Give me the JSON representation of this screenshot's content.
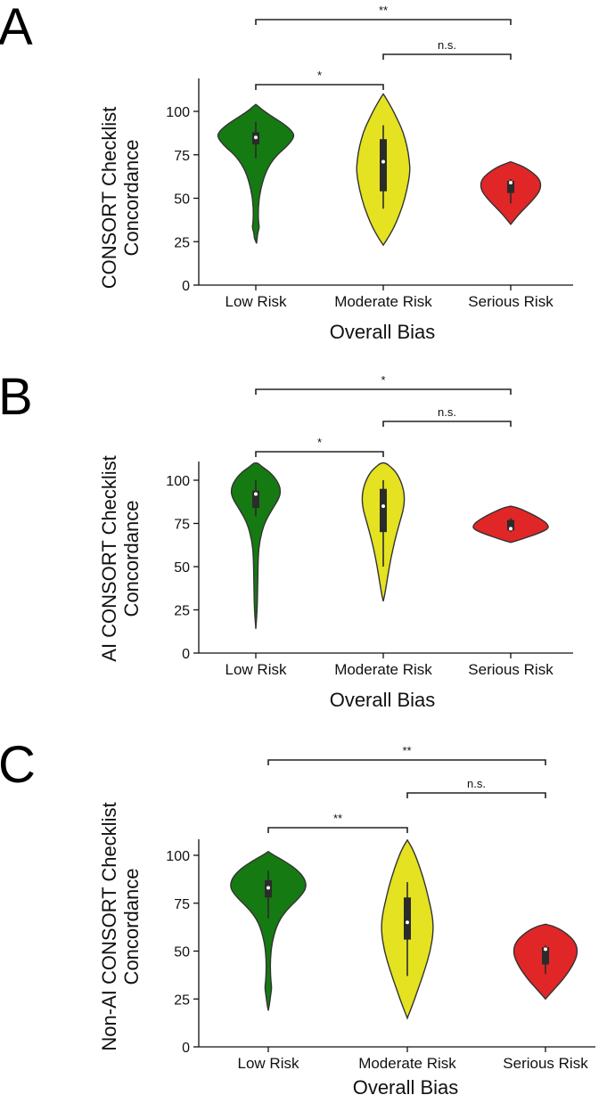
{
  "colors": {
    "Low Risk": "#157a12",
    "Moderate Risk": "#e4e221",
    "Serious Risk": "#e02626"
  },
  "chart_data": [
    {
      "panel": "A",
      "type": "violin",
      "xlabel": "Overall Bias",
      "ylabel": [
        "CONSORT Checklist",
        "Concordance"
      ],
      "categories": [
        "Low Risk",
        "Moderate Risk",
        "Serious Risk"
      ],
      "yticks": [
        0,
        25,
        50,
        75,
        100
      ],
      "ylim": [
        0,
        105
      ],
      "series": [
        {
          "category": "Low Risk",
          "q1": 81,
          "median": 85,
          "q3": 88,
          "whisker_low": 73,
          "whisker_high": 94,
          "profile": [
            [
              24,
              0.02
            ],
            [
              30,
              0.05
            ],
            [
              33,
              0.09
            ],
            [
              35,
              0.08
            ],
            [
              40,
              0.06
            ],
            [
              50,
              0.08
            ],
            [
              60,
              0.18
            ],
            [
              68,
              0.32
            ],
            [
              75,
              0.55
            ],
            [
              80,
              0.82
            ],
            [
              85,
              1.0
            ],
            [
              88,
              0.97
            ],
            [
              92,
              0.78
            ],
            [
              96,
              0.5
            ],
            [
              100,
              0.22
            ],
            [
              103,
              0.06
            ],
            [
              104,
              0.0
            ]
          ]
        },
        {
          "category": "Moderate Risk",
          "q1": 54,
          "median": 71,
          "q3": 84,
          "whisker_low": 44,
          "whisker_high": 92,
          "profile": [
            [
              23,
              0.0
            ],
            [
              28,
              0.15
            ],
            [
              35,
              0.32
            ],
            [
              45,
              0.5
            ],
            [
              55,
              0.62
            ],
            [
              65,
              0.7
            ],
            [
              72,
              0.68
            ],
            [
              80,
              0.62
            ],
            [
              88,
              0.52
            ],
            [
              95,
              0.38
            ],
            [
              102,
              0.22
            ],
            [
              108,
              0.06
            ],
            [
              110,
              0.0
            ]
          ]
        },
        {
          "category": "Serious Risk",
          "q1": 53,
          "median": 59,
          "q3": 60,
          "whisker_low": 47,
          "whisker_high": 61,
          "profile": [
            [
              35,
              0.0
            ],
            [
              40,
              0.18
            ],
            [
              45,
              0.4
            ],
            [
              50,
              0.62
            ],
            [
              55,
              0.78
            ],
            [
              60,
              0.78
            ],
            [
              64,
              0.62
            ],
            [
              68,
              0.35
            ],
            [
              70,
              0.12
            ],
            [
              71,
              0.0
            ]
          ]
        }
      ],
      "comparisons": [
        {
          "from": 0,
          "to": 2,
          "label": "**"
        },
        {
          "from": 1,
          "to": 2,
          "label": "n.s."
        },
        {
          "from": 0,
          "to": 1,
          "label": "*"
        }
      ]
    },
    {
      "panel": "B",
      "type": "violin",
      "xlabel": "Overall Bias",
      "ylabel": [
        "AI CONSORT Checklist",
        "Concordance"
      ],
      "categories": [
        "Low Risk",
        "Moderate Risk",
        "Serious Risk"
      ],
      "yticks": [
        0,
        25,
        50,
        75,
        100
      ],
      "ylim": [
        0,
        110
      ],
      "series": [
        {
          "category": "Low Risk",
          "q1": 84,
          "median": 92,
          "q3": 94,
          "whisker_low": 79,
          "whisker_high": 100,
          "profile": [
            [
              14,
              0.0
            ],
            [
              20,
              0.02
            ],
            [
              28,
              0.04
            ],
            [
              40,
              0.05
            ],
            [
              55,
              0.06
            ],
            [
              65,
              0.1
            ],
            [
              75,
              0.22
            ],
            [
              83,
              0.42
            ],
            [
              90,
              0.62
            ],
            [
              95,
              0.65
            ],
            [
              100,
              0.55
            ],
            [
              105,
              0.35
            ],
            [
              108,
              0.15
            ],
            [
              110,
              0.05
            ]
          ]
        },
        {
          "category": "Moderate Risk",
          "q1": 70,
          "median": 85,
          "q3": 95,
          "whisker_low": 50,
          "whisker_high": 100,
          "profile": [
            [
              30,
              0.0
            ],
            [
              35,
              0.05
            ],
            [
              45,
              0.12
            ],
            [
              55,
              0.2
            ],
            [
              65,
              0.3
            ],
            [
              75,
              0.42
            ],
            [
              85,
              0.55
            ],
            [
              93,
              0.55
            ],
            [
              100,
              0.45
            ],
            [
              105,
              0.32
            ],
            [
              108,
              0.18
            ],
            [
              110,
              0.06
            ]
          ]
        },
        {
          "category": "Serious Risk",
          "q1": 71,
          "median": 72,
          "q3": 77,
          "whisker_low": 70,
          "whisker_high": 78,
          "profile": [
            [
              64,
              0.0
            ],
            [
              66,
              0.3
            ],
            [
              69,
              0.7
            ],
            [
              72,
              1.0
            ],
            [
              75,
              0.95
            ],
            [
              78,
              0.75
            ],
            [
              81,
              0.5
            ],
            [
              84,
              0.2
            ],
            [
              85,
              0.0
            ]
          ]
        }
      ],
      "comparisons": [
        {
          "from": 0,
          "to": 2,
          "label": "*"
        },
        {
          "from": 1,
          "to": 2,
          "label": "n.s."
        },
        {
          "from": 0,
          "to": 1,
          "label": "*"
        }
      ]
    },
    {
      "panel": "C",
      "type": "violin",
      "xlabel": "Overall Bias",
      "ylabel": [
        "Non-AI CONSORT Checklist",
        "Concordance"
      ],
      "categories": [
        "Low Risk",
        "Moderate Risk",
        "Serious Risk"
      ],
      "yticks": [
        0,
        25,
        50,
        75,
        100
      ],
      "ylim": [
        0,
        110
      ],
      "series": [
        {
          "category": "Low Risk",
          "q1": 78,
          "median": 83,
          "q3": 87,
          "whisker_low": 67,
          "whisker_high": 92,
          "profile": [
            [
              19,
              0.0
            ],
            [
              22,
              0.03
            ],
            [
              28,
              0.07
            ],
            [
              31,
              0.09
            ],
            [
              36,
              0.06
            ],
            [
              45,
              0.05
            ],
            [
              55,
              0.1
            ],
            [
              65,
              0.25
            ],
            [
              72,
              0.5
            ],
            [
              78,
              0.82
            ],
            [
              83,
              1.0
            ],
            [
              88,
              0.95
            ],
            [
              93,
              0.72
            ],
            [
              97,
              0.42
            ],
            [
              100,
              0.15
            ],
            [
              102,
              0.0
            ]
          ]
        },
        {
          "category": "Moderate Risk",
          "q1": 56,
          "median": 65,
          "q3": 78,
          "whisker_low": 37,
          "whisker_high": 86,
          "profile": [
            [
              15,
              0.0
            ],
            [
              20,
              0.1
            ],
            [
              30,
              0.28
            ],
            [
              40,
              0.45
            ],
            [
              50,
              0.6
            ],
            [
              60,
              0.68
            ],
            [
              68,
              0.66
            ],
            [
              78,
              0.55
            ],
            [
              88,
              0.42
            ],
            [
              98,
              0.25
            ],
            [
              104,
              0.12
            ],
            [
              108,
              0.0
            ]
          ]
        },
        {
          "category": "Serious Risk",
          "q1": 43,
          "median": 51,
          "q3": 52,
          "whisker_low": 38,
          "whisker_high": 53,
          "profile": [
            [
              25,
              0.0
            ],
            [
              30,
              0.22
            ],
            [
              35,
              0.45
            ],
            [
              42,
              0.7
            ],
            [
              49,
              0.85
            ],
            [
              55,
              0.78
            ],
            [
              60,
              0.5
            ],
            [
              63,
              0.22
            ],
            [
              64,
              0.0
            ]
          ]
        }
      ],
      "comparisons": [
        {
          "from": 0,
          "to": 2,
          "label": "**"
        },
        {
          "from": 1,
          "to": 2,
          "label": "n.s."
        },
        {
          "from": 0,
          "to": 1,
          "label": "**"
        }
      ]
    }
  ]
}
